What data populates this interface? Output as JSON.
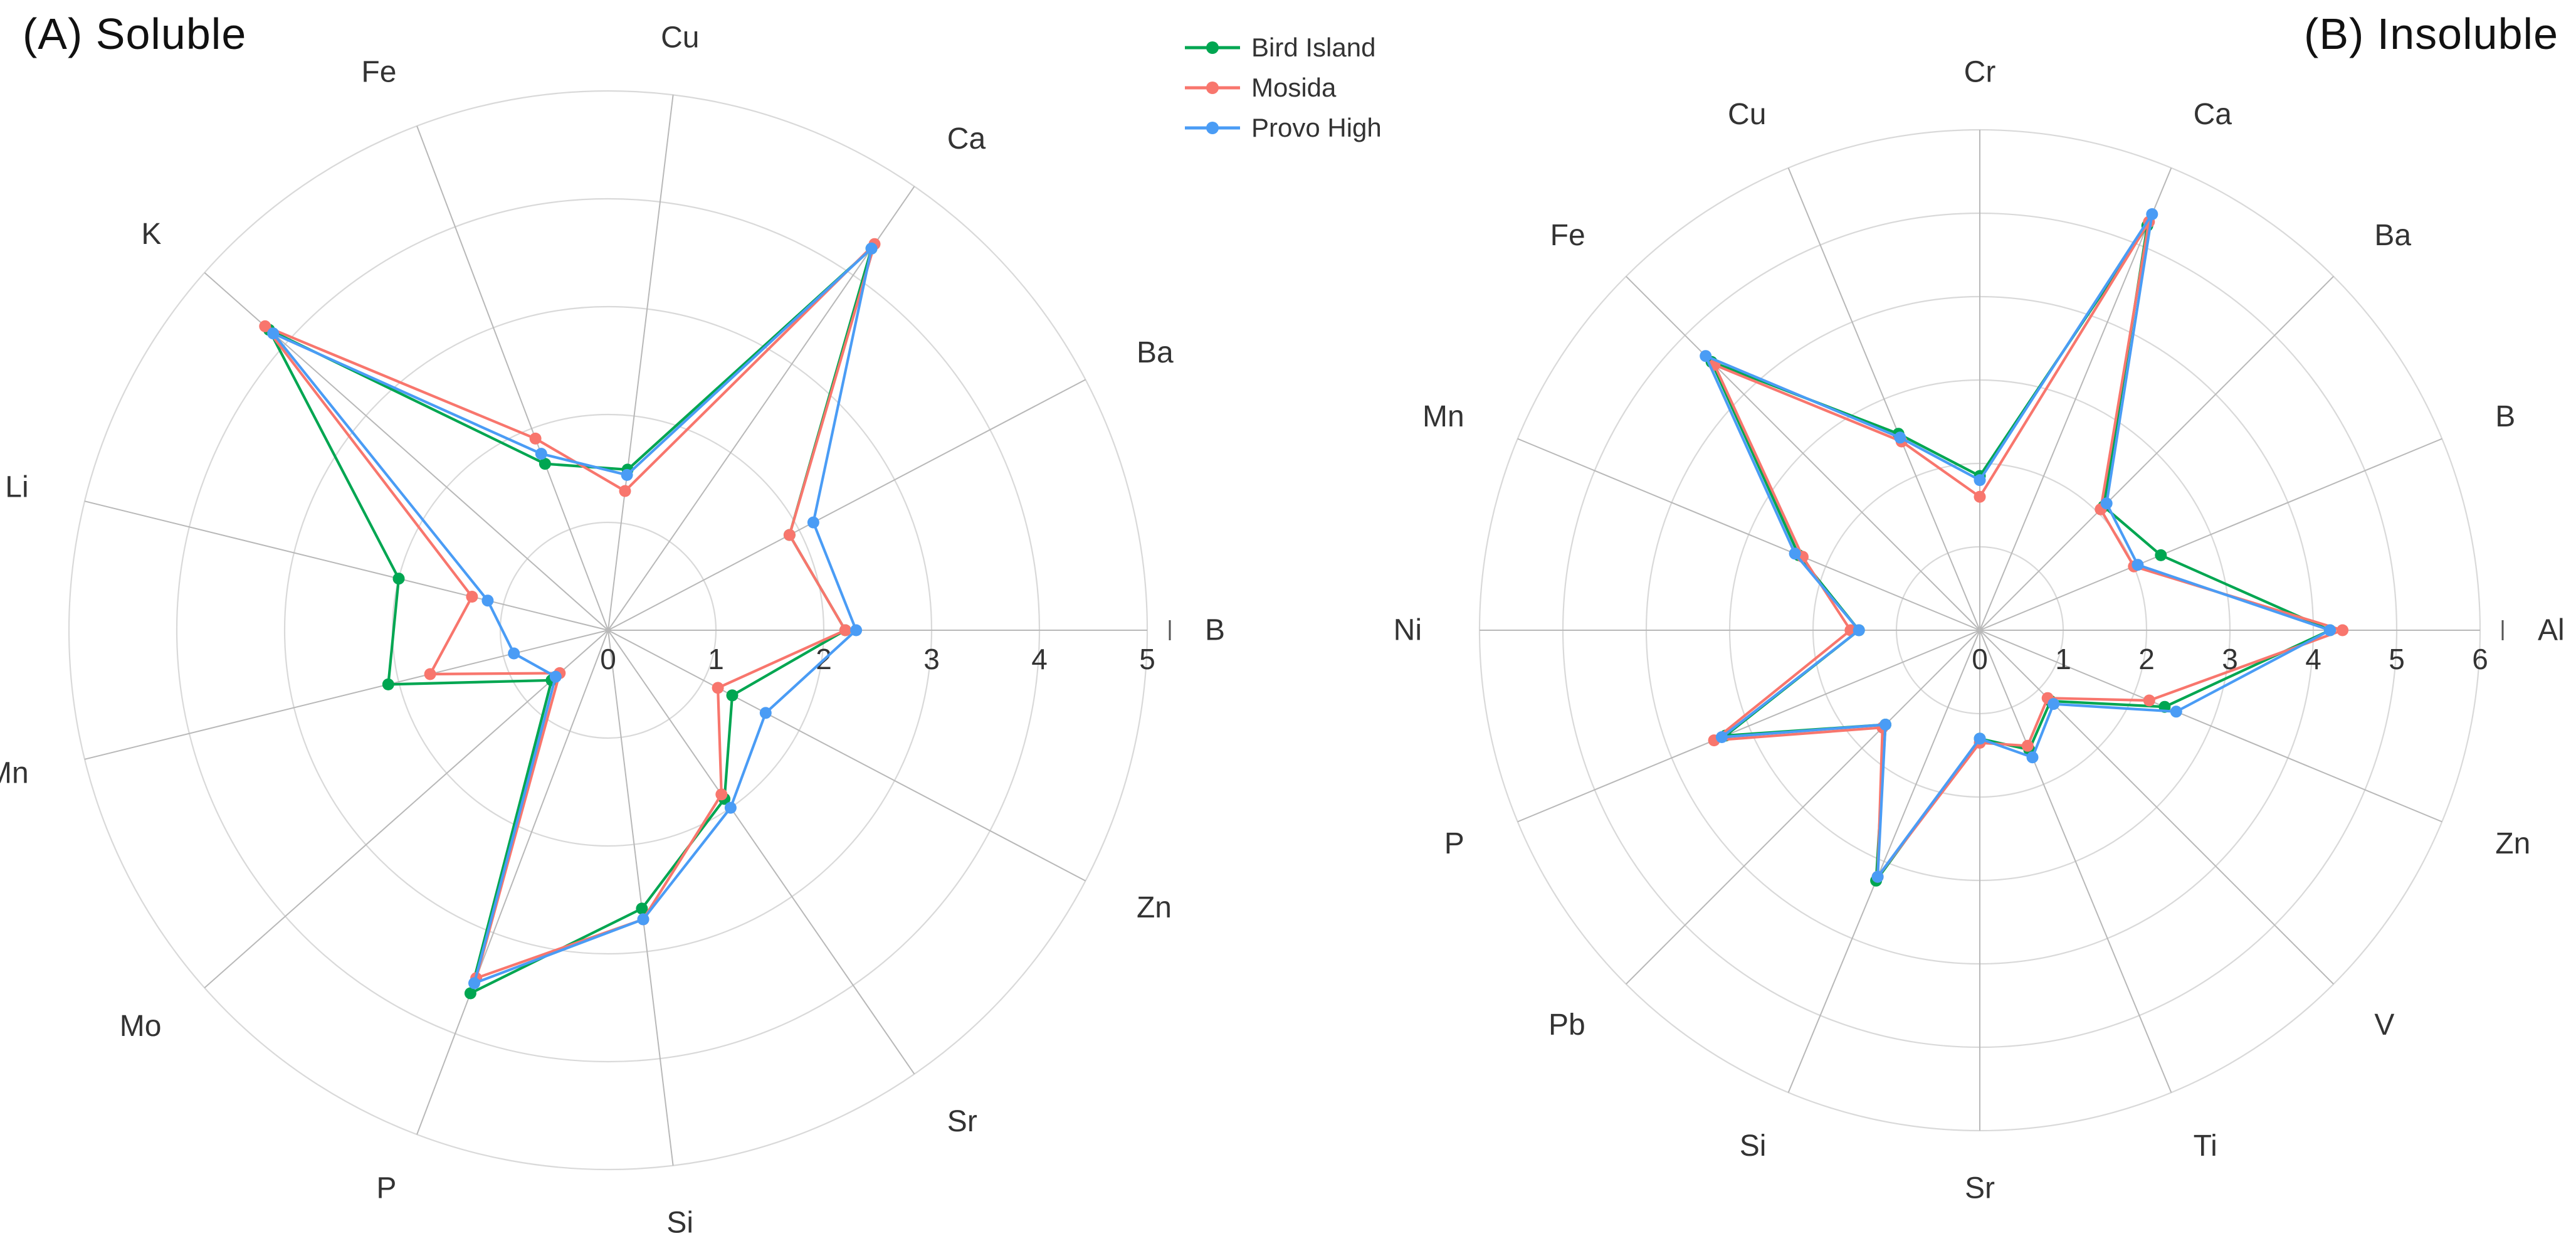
{
  "panels": [
    {
      "title": "(A) Soluble"
    },
    {
      "title": "(B) Insoluble"
    }
  ],
  "legend": {
    "position": "top-center",
    "items": [
      {
        "label": "Bird Island",
        "color": "#00A651"
      },
      {
        "label": "Mosida",
        "color": "#F8766D"
      },
      {
        "label": "Provo High",
        "color": "#4A9CF5"
      }
    ]
  },
  "colors": {
    "grid_ring": "#d9d9d9",
    "grid_spoke": "#b8b8b8",
    "axis_text": "#333333",
    "label_text": "#333333",
    "background": "#ffffff"
  },
  "chart_data": [
    {
      "type": "radar",
      "title": "(A) Soluble",
      "grid": true,
      "r_max": 5,
      "r_ticks": [
        0,
        1,
        2,
        3,
        4,
        5
      ],
      "categories": [
        "B",
        "Ba",
        "Ca",
        "Cu",
        "Fe",
        "K",
        "Li",
        "Mn",
        "Mo",
        "P",
        "Si",
        "Sr",
        "Zn"
      ],
      "series": [
        {
          "name": "Bird Island",
          "color": "#00A651",
          "values": [
            2.2,
            1.9,
            4.3,
            1.5,
            1.65,
            4.2,
            2.0,
            2.1,
            0.7,
            3.6,
            2.6,
            1.9,
            1.3
          ]
        },
        {
          "name": "Mosida",
          "color": "#F8766D",
          "values": [
            2.2,
            1.9,
            4.35,
            1.3,
            1.9,
            4.25,
            1.3,
            1.7,
            0.6,
            3.45,
            2.7,
            1.85,
            1.15
          ]
        },
        {
          "name": "Provo High",
          "color": "#4A9CF5",
          "values": [
            2.3,
            2.15,
            4.3,
            1.45,
            1.75,
            4.15,
            1.15,
            0.9,
            0.65,
            3.5,
            2.7,
            2.0,
            1.65
          ]
        }
      ]
    },
    {
      "type": "radar",
      "title": "(B) Insoluble",
      "grid": true,
      "r_max": 6,
      "r_ticks": [
        0,
        1,
        2,
        3,
        4,
        5,
        6
      ],
      "categories": [
        "Al",
        "B",
        "Ba",
        "Ca",
        "Cr",
        "Cu",
        "Fe",
        "Mn",
        "Ni",
        "P",
        "Pb",
        "Si",
        "Sr",
        "Ti",
        "V",
        "Zn"
      ],
      "series": [
        {
          "name": "Bird Island",
          "color": "#00A651",
          "values": [
            4.2,
            2.35,
            2.1,
            5.25,
            1.85,
            2.55,
            4.55,
            2.35,
            1.45,
            3.3,
            1.6,
            3.25,
            1.3,
            1.55,
            1.2,
            2.4
          ]
        },
        {
          "name": "Mosida",
          "color": "#F8766D",
          "values": [
            4.35,
            2.0,
            2.05,
            5.3,
            1.6,
            2.45,
            4.5,
            2.3,
            1.55,
            3.45,
            1.65,
            3.2,
            1.35,
            1.5,
            1.15,
            2.2
          ]
        },
        {
          "name": "Provo High",
          "color": "#4A9CF5",
          "values": [
            4.2,
            2.05,
            2.15,
            5.4,
            1.8,
            2.5,
            4.65,
            2.4,
            1.45,
            3.35,
            1.6,
            3.2,
            1.3,
            1.65,
            1.25,
            2.55
          ]
        }
      ]
    }
  ]
}
